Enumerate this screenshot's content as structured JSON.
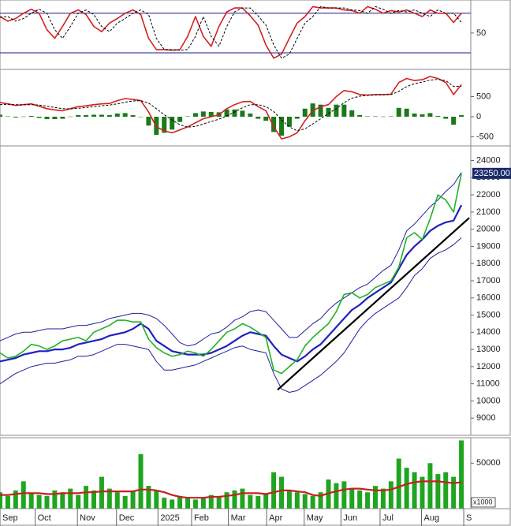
{
  "chart_data": [
    {
      "type": "line",
      "xlim": [
        0,
        60
      ],
      "ylim": [
        -5,
        100
      ],
      "yticks": [
        50
      ],
      "hlines": [
        80,
        20
      ],
      "hline_color": "#1a1a8c",
      "series": [
        {
          "color": "#d42020",
          "style": "solid",
          "values": [
            75,
            68,
            72,
            80,
            86,
            80,
            55,
            42,
            60,
            80,
            85,
            78,
            60,
            52,
            65,
            72,
            80,
            85,
            78,
            42,
            25,
            25,
            24,
            25,
            45,
            75,
            45,
            30,
            60,
            82,
            88,
            88,
            76,
            62,
            32,
            12,
            18,
            42,
            65,
            75,
            90,
            88,
            88,
            88,
            85,
            84,
            80,
            90,
            86,
            80,
            84,
            82,
            85,
            80,
            75,
            85,
            80,
            80,
            66,
            80
          ]
        },
        {
          "color": "#000000",
          "style": "dashed",
          "values": [
            74,
            75,
            68,
            72,
            80,
            86,
            80,
            55,
            42,
            60,
            80,
            85,
            78,
            60,
            52,
            65,
            72,
            80,
            85,
            78,
            42,
            25,
            25,
            24,
            25,
            45,
            75,
            45,
            30,
            60,
            82,
            88,
            88,
            76,
            62,
            32,
            12,
            18,
            42,
            65,
            75,
            90,
            88,
            88,
            88,
            85,
            84,
            80,
            90,
            86,
            80,
            84,
            82,
            85,
            80,
            75,
            85,
            80,
            80,
            66
          ]
        }
      ]
    },
    {
      "type": "line",
      "xlim": [
        0,
        60
      ],
      "ylim": [
        -725,
        1176
      ],
      "yticks": [
        500,
        0,
        -500
      ],
      "series": [
        {
          "color": "#1a7a1a",
          "style": "bar",
          "values": [
            50,
            10,
            -20,
            5,
            20,
            -30,
            -60,
            -60,
            -50,
            5,
            40,
            40,
            50,
            50,
            40,
            80,
            90,
            40,
            0,
            -220,
            -450,
            -400,
            -320,
            -130,
            10,
            90,
            130,
            120,
            110,
            180,
            180,
            150,
            80,
            -50,
            -100,
            -380,
            -470,
            -250,
            -50,
            200,
            330,
            300,
            220,
            300,
            300,
            160,
            40,
            10,
            10,
            5,
            10,
            220,
            200,
            80,
            60,
            90,
            20,
            -50,
            -200,
            40
          ]
        },
        {
          "color": "#d42020",
          "style": "solid",
          "values": [
            350,
            320,
            280,
            300,
            320,
            260,
            200,
            170,
            150,
            200,
            250,
            270,
            300,
            320,
            330,
            400,
            450,
            430,
            400,
            120,
            -250,
            -350,
            -400,
            -330,
            -250,
            -150,
            -50,
            0,
            50,
            200,
            300,
            370,
            380,
            250,
            150,
            -250,
            -550,
            -500,
            -400,
            -100,
            150,
            250,
            300,
            500,
            650,
            620,
            550,
            540,
            550,
            550,
            560,
            850,
            950,
            900,
            920,
            1000,
            950,
            850,
            550,
            800
          ]
        },
        {
          "color": "#000000",
          "style": "dashed",
          "values": [
            300,
            310,
            300,
            295,
            300,
            290,
            260,
            230,
            200,
            195,
            210,
            230,
            250,
            270,
            290,
            320,
            360,
            390,
            400,
            340,
            200,
            50,
            -80,
            -200,
            -260,
            -240,
            -180,
            -120,
            -60,
            20,
            120,
            220,
            300,
            300,
            250,
            130,
            -80,
            -250,
            -350,
            -300,
            -180,
            -50,
            80,
            200,
            350,
            460,
            510,
            530,
            540,
            545,
            550,
            630,
            750,
            820,
            860,
            910,
            930,
            900,
            750,
            760
          ]
        }
      ]
    },
    {
      "type": "line",
      "xlim": [
        0,
        60
      ],
      "ylim": [
        8000,
        24850
      ],
      "yticks": [
        9000,
        10000,
        11000,
        12000,
        13000,
        14000,
        15000,
        16000,
        17000,
        18000,
        19000,
        20000,
        21000,
        22000,
        23000,
        24000
      ],
      "last_price": {
        "value": 23250,
        "label": "23250.00"
      },
      "series": [
        {
          "color": "#1f1f9e",
          "style": "thin",
          "values": [
            13500,
            13700,
            13900,
            14000,
            14000,
            14100,
            14200,
            14200,
            14200,
            14300,
            14400,
            14400,
            14500,
            14600,
            14800,
            14900,
            15000,
            15100,
            15100,
            15000,
            14800,
            14400,
            13900,
            13400,
            13200,
            13300,
            13600,
            13900,
            14000,
            14300,
            14700,
            14900,
            15200,
            15300,
            15200,
            14700,
            14200,
            13700,
            13700,
            14100,
            14500,
            14800,
            15300,
            15700,
            16000,
            16300,
            16600,
            16800,
            17200,
            17600,
            17900,
            18800,
            19900,
            20300,
            20800,
            21300,
            21700,
            22200,
            22600,
            23300
          ]
        },
        {
          "color": "#1f1f9e",
          "style": "thin",
          "values": [
            11000,
            11300,
            11600,
            11800,
            12000,
            12100,
            12200,
            12200,
            12300,
            12400,
            12600,
            12600,
            12700,
            12900,
            13100,
            13300,
            13300,
            13200,
            13100,
            13000,
            12300,
            11800,
            11800,
            11900,
            12000,
            12100,
            12300,
            12500,
            12700,
            12900,
            13100,
            13200,
            13000,
            12900,
            12800,
            11600,
            10700,
            10500,
            10600,
            10900,
            11200,
            11500,
            11900,
            12300,
            12800,
            13500,
            14200,
            14700,
            15100,
            15400,
            15700,
            16000,
            16600,
            17300,
            17700,
            18300,
            18600,
            18800,
            19100,
            19500
          ]
        },
        {
          "color": "#2020c0",
          "style": "thick",
          "values": [
            12300,
            12400,
            12500,
            12700,
            12800,
            12900,
            12900,
            13000,
            13000,
            13100,
            13300,
            13400,
            13500,
            13600,
            13800,
            13900,
            14000,
            14200,
            14500,
            14200,
            13500,
            13200,
            12900,
            12800,
            12700,
            12700,
            12700,
            12800,
            13000,
            13200,
            13500,
            13800,
            14000,
            13900,
            13800,
            13200,
            12700,
            12500,
            12300,
            12600,
            13000,
            13300,
            13800,
            14300,
            14800,
            15300,
            15600,
            16000,
            16300,
            16600,
            16900,
            17700,
            18500,
            19000,
            19400,
            19900,
            20200,
            20400,
            20500,
            21400
          ]
        },
        {
          "color": "#22b322",
          "style": "solid",
          "values": [
            12800,
            12500,
            12600,
            12900,
            13300,
            13200,
            13000,
            13200,
            13500,
            13600,
            13700,
            13500,
            14000,
            14200,
            14400,
            14700,
            14700,
            14600,
            14600,
            13600,
            13100,
            12800,
            12600,
            12700,
            12900,
            12800,
            12600,
            13000,
            13500,
            14000,
            14200,
            14500,
            14300,
            14000,
            13700,
            11800,
            11600,
            12000,
            12400,
            13200,
            13700,
            14100,
            14500,
            15200,
            16200,
            16300,
            16000,
            16200,
            16600,
            16800,
            17000,
            17800,
            19500,
            19800,
            19400,
            20600,
            22000,
            21700,
            21000,
            23250
          ]
        },
        {
          "color": "#000000",
          "style": "thick",
          "x": [
            35.5,
            60
          ],
          "values": [
            10650,
            20660
          ]
        }
      ]
    },
    {
      "type": "bar",
      "xlim": [
        0,
        60
      ],
      "ylim": [
        0,
        78000
      ],
      "yticks": [
        50000
      ],
      "unit_label": "x1000",
      "xticks": [
        {
          "value": 0,
          "label": "Sep"
        },
        {
          "value": 4.5,
          "label": "Oct"
        },
        {
          "value": 9.9,
          "label": "Nov"
        },
        {
          "value": 14.9,
          "label": "Dec"
        },
        {
          "value": 20.2,
          "label": "2025"
        },
        {
          "value": 24.5,
          "label": "Feb"
        },
        {
          "value": 29.2,
          "label": "Mar"
        },
        {
          "value": 34.1,
          "label": "Apr"
        },
        {
          "value": 38.9,
          "label": "May"
        },
        {
          "value": 43.6,
          "label": "Jun"
        },
        {
          "value": 48.6,
          "label": "Jul"
        },
        {
          "value": 53.9,
          "label": "Aug"
        },
        {
          "value": 59.3,
          "label": "S"
        }
      ],
      "series": [
        {
          "color": "#1fa51f",
          "style": "bar",
          "values": [
            18000,
            14000,
            20000,
            30000,
            16000,
            15000,
            14000,
            20000,
            18000,
            22000,
            15000,
            25000,
            20000,
            35000,
            22000,
            18000,
            14000,
            20000,
            60000,
            25000,
            20000,
            12000,
            10000,
            14000,
            12000,
            10000,
            12000,
            15000,
            13000,
            18000,
            20000,
            22000,
            15000,
            14000,
            16000,
            40000,
            35000,
            20000,
            18000,
            16000,
            14000,
            18000,
            32000,
            28000,
            30000,
            22000,
            20000,
            18000,
            25000,
            22000,
            30000,
            55000,
            45000,
            40000,
            35000,
            50000,
            38000,
            40000,
            35000,
            75000
          ]
        },
        {
          "color": "#c82020",
          "style": "thick",
          "values": [
            15000,
            15000,
            16000,
            17000,
            17000,
            17000,
            16000,
            16000,
            17000,
            17000,
            17000,
            18000,
            18000,
            19000,
            19000,
            19000,
            19000,
            19000,
            21000,
            21000,
            20000,
            18000,
            15000,
            13000,
            12000,
            12000,
            12000,
            13000,
            13000,
            14000,
            15000,
            17000,
            17000,
            17000,
            16000,
            18000,
            20000,
            20000,
            19000,
            18000,
            15000,
            14000,
            17000,
            19000,
            21000,
            22000,
            22000,
            21000,
            20000,
            20000,
            21000,
            24000,
            27000,
            29000,
            30000,
            30000,
            30000,
            29000,
            28000,
            29000
          ]
        }
      ]
    }
  ]
}
